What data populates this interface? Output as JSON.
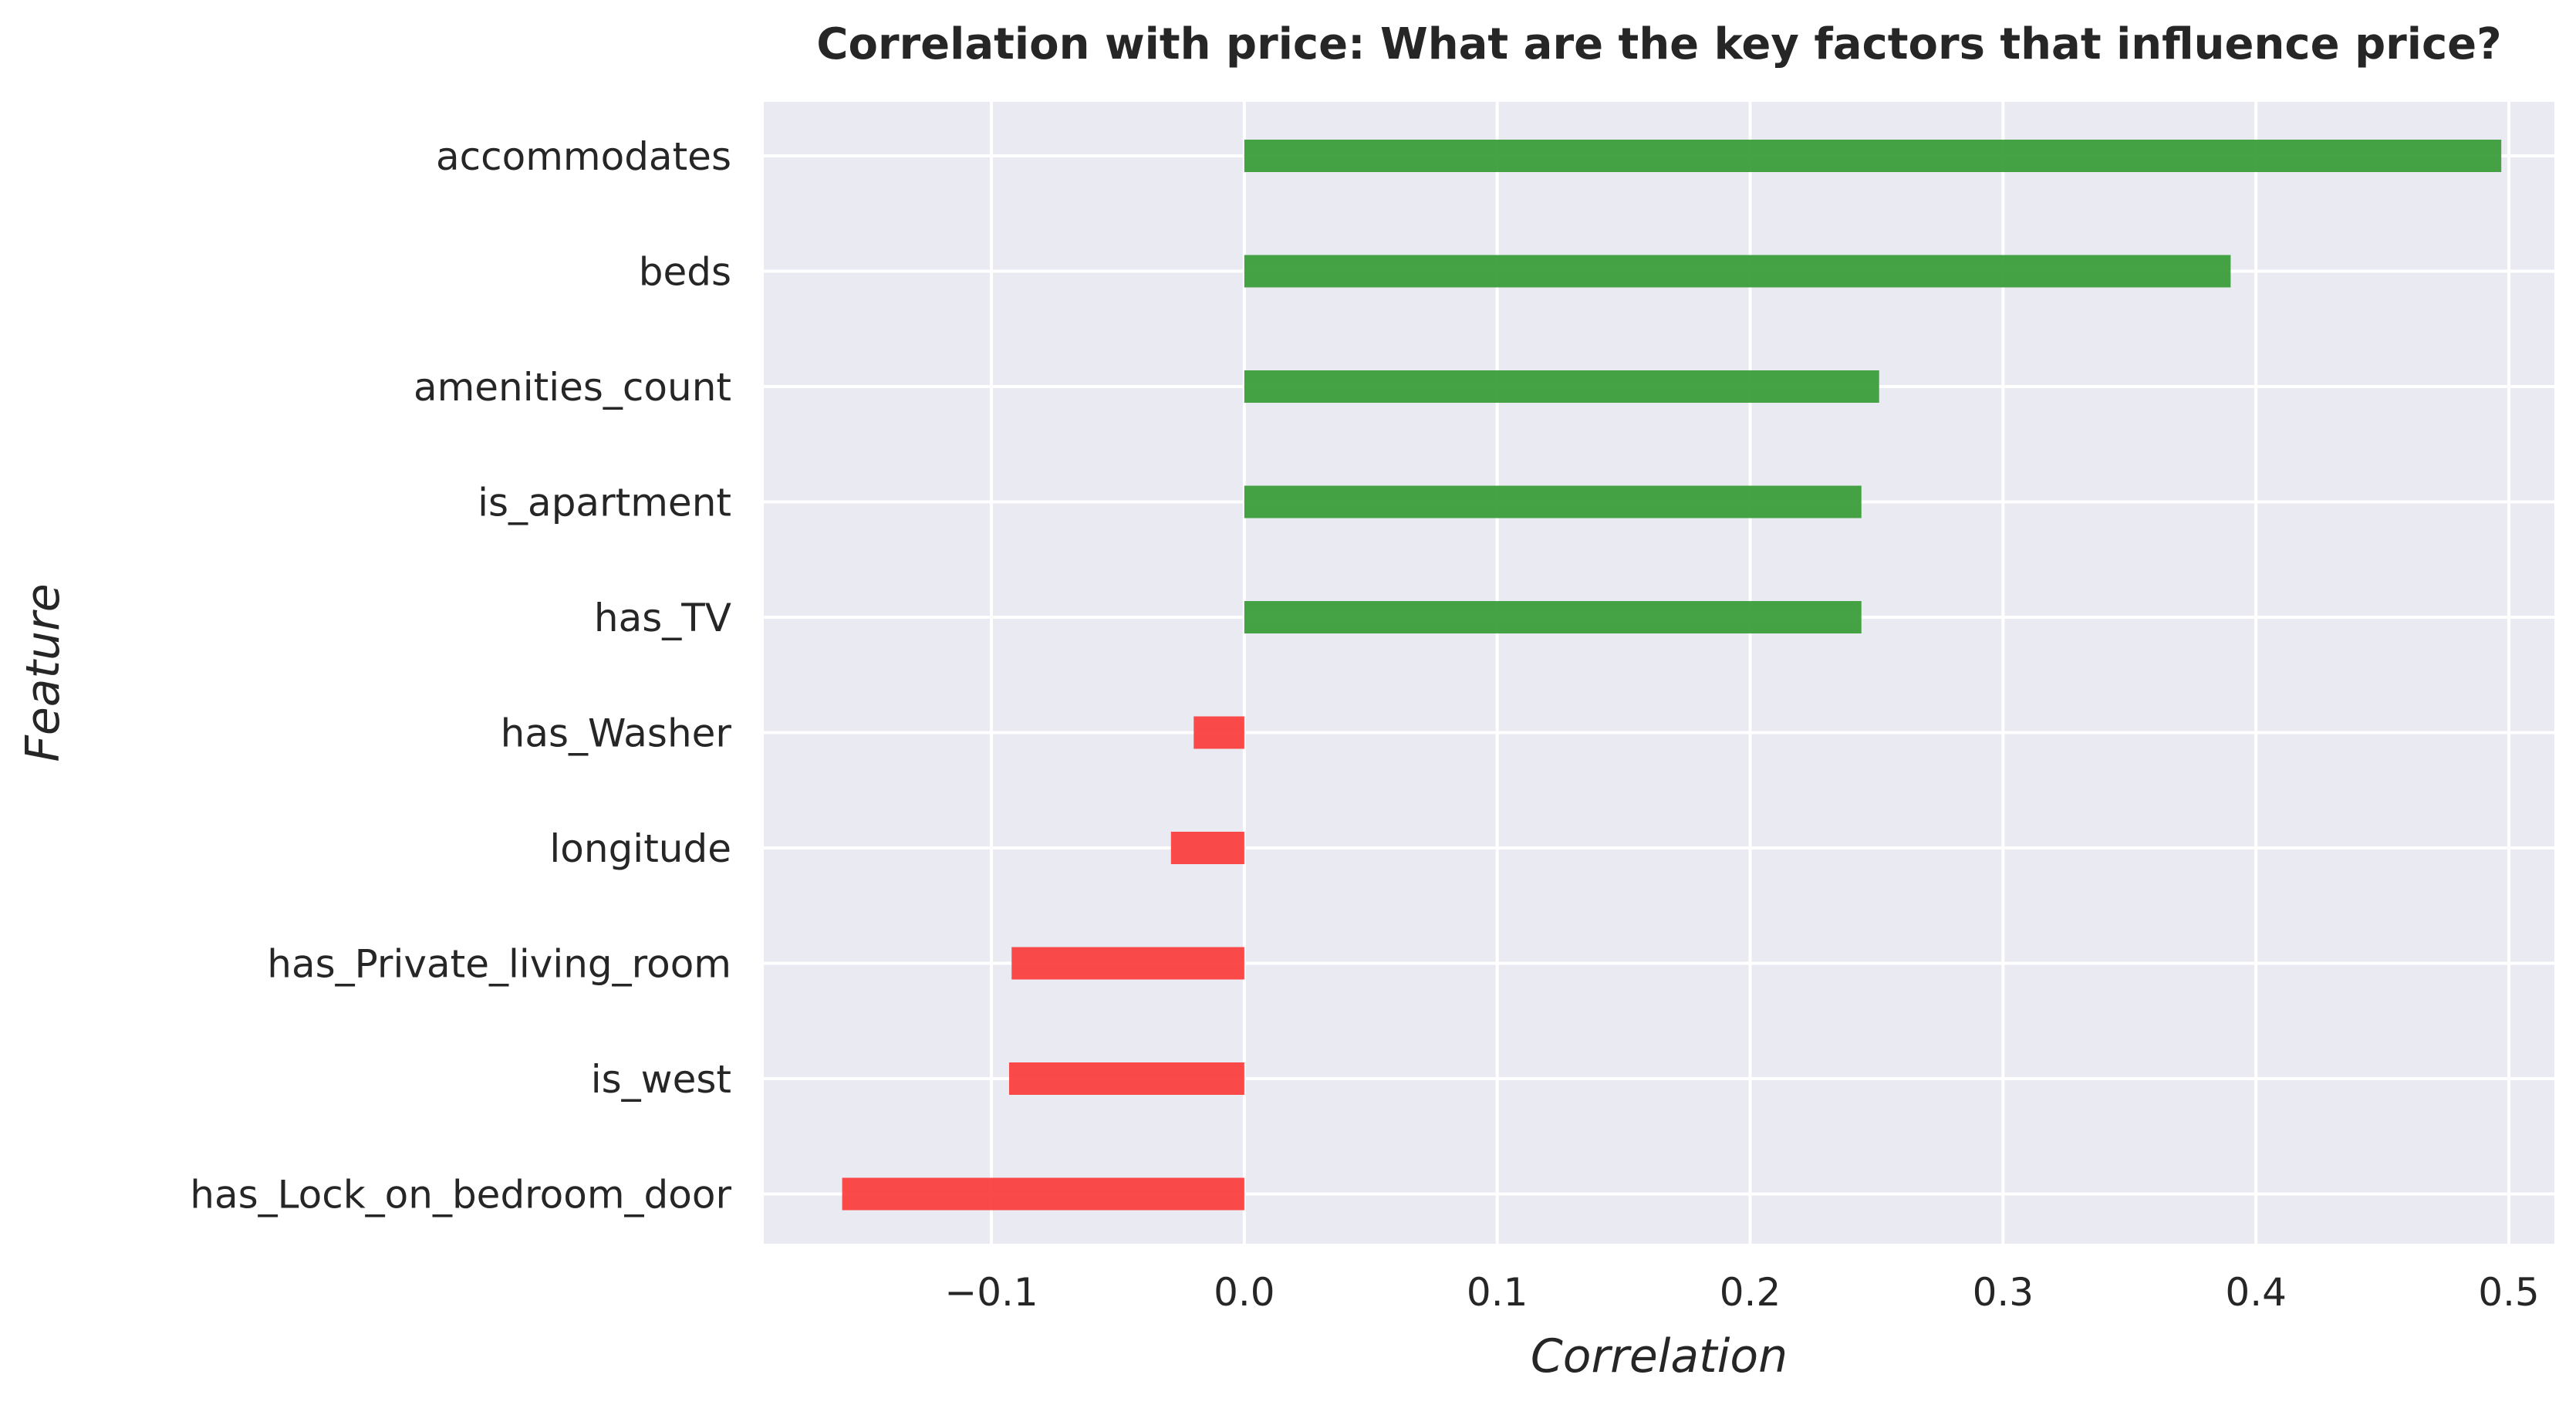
{
  "chart_data": {
    "type": "bar",
    "orientation": "horizontal",
    "title": "Correlation with price: What are the key factors that influence price?",
    "xlabel": "Correlation",
    "ylabel": "Feature",
    "categories": [
      "accommodates",
      "beds",
      "amenities_count",
      "is_apartment",
      "has_TV",
      "has_Washer",
      "longitude",
      "has_Private_living_room",
      "is_west",
      "has_Lock_on_bedroom_door"
    ],
    "values": [
      0.497,
      0.39,
      0.251,
      0.244,
      0.244,
      -0.02,
      -0.029,
      -0.092,
      -0.093,
      -0.159
    ],
    "xlim": [
      -0.19,
      0.518
    ],
    "xticks": [
      -0.1,
      0.0,
      0.1,
      0.2,
      0.3,
      0.4,
      0.5
    ],
    "xtick_labels": [
      "−0.1",
      "0.0",
      "0.1",
      "0.2",
      "0.3",
      "0.4",
      "0.5"
    ],
    "grid": true,
    "legend": "none",
    "colors": {
      "positive": "#359a35",
      "negative": "#fb3b3b",
      "plot_background": "#eaeaf2",
      "grid": "#ffffff"
    }
  }
}
